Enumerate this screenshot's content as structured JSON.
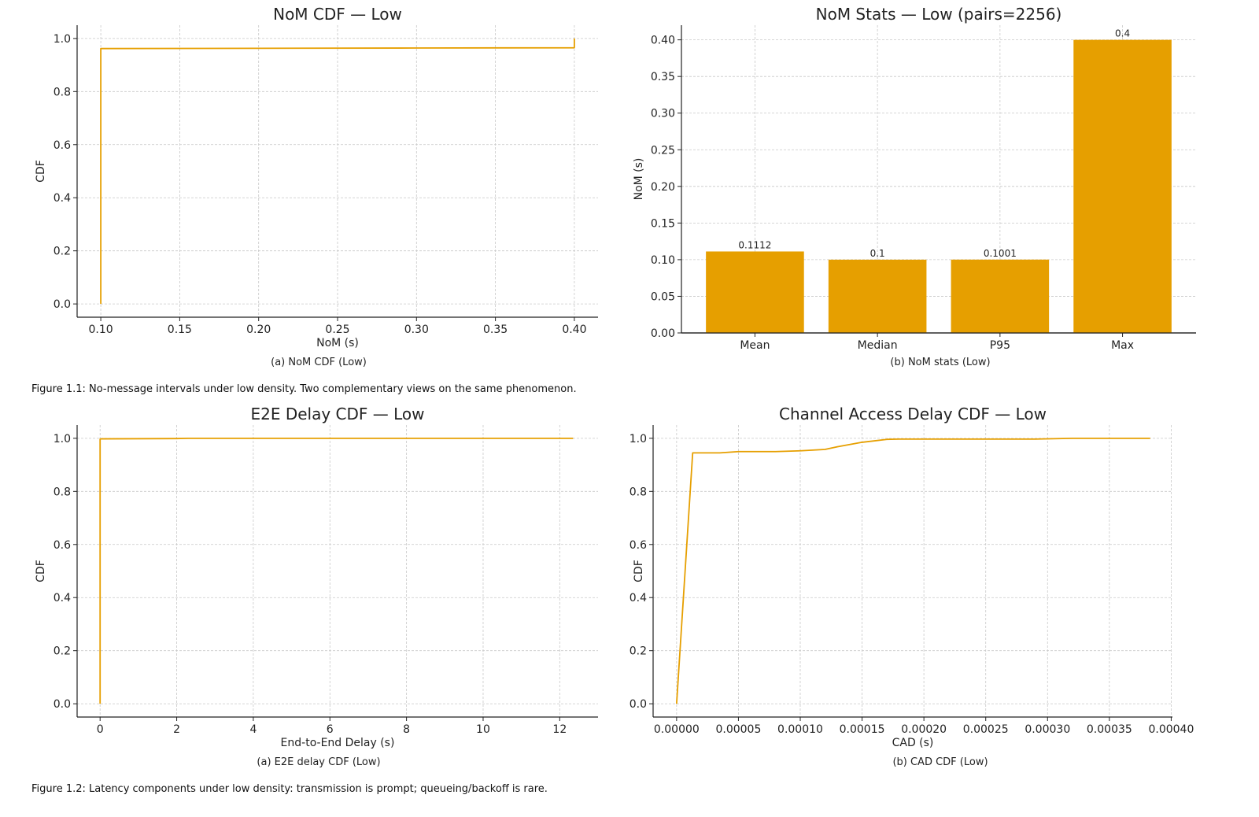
{
  "style": {
    "line_color": "#e69f00",
    "bar_color": "#e69f00",
    "grid_color": "#c8c8c8"
  },
  "figure1": {
    "caption": "Figure 1.1: No-message intervals under low density. Two complementary views on the same phenomenon.",
    "sub_a": "(a) NoM CDF (Low)",
    "sub_b": "(b) NoM stats (Low)"
  },
  "figure2": {
    "caption": "Figure 1.2: Latency components under low density: transmission is prompt; queueing/backoff is rare.",
    "sub_a": "(a) E2E delay CDF (Low)",
    "sub_b": "(b) CAD CDF (Low)"
  },
  "chart_data": [
    {
      "id": "nom_cdf",
      "type": "line",
      "title": "NoM CDF — Low",
      "xlabel": "NoM (s)",
      "ylabel": "CDF",
      "xlim": [
        0.085,
        0.415
      ],
      "ylim": [
        -0.05,
        1.05
      ],
      "xticks": [
        0.1,
        0.15,
        0.2,
        0.25,
        0.3,
        0.35,
        0.4
      ],
      "xtick_labels": [
        "0.10",
        "0.15",
        "0.20",
        "0.25",
        "0.30",
        "0.35",
        "0.40"
      ],
      "yticks": [
        0.0,
        0.2,
        0.4,
        0.6,
        0.8,
        1.0
      ],
      "ytick_labels": [
        "0.0",
        "0.2",
        "0.4",
        "0.6",
        "0.8",
        "1.0"
      ],
      "grid": true,
      "x": [
        0.1,
        0.1,
        0.1,
        0.2,
        0.3,
        0.4,
        0.4,
        0.4
      ],
      "y": [
        0.0,
        0.96,
        0.962,
        0.963,
        0.964,
        0.965,
        0.965,
        1.0
      ]
    },
    {
      "id": "nom_stats",
      "type": "bar",
      "title": "NoM Stats — Low (pairs=2256)",
      "xlabel": "",
      "ylabel": "NoM (s)",
      "categories": [
        "Mean",
        "Median",
        "P95",
        "Max"
      ],
      "values": [
        0.1112,
        0.1,
        0.1001,
        0.4
      ],
      "data_labels": [
        "0.1112",
        "0.1",
        "0.1001",
        "0.4"
      ],
      "ylim": [
        0,
        0.42
      ],
      "yticks": [
        0.0,
        0.05,
        0.1,
        0.15,
        0.2,
        0.25,
        0.3,
        0.35,
        0.4
      ],
      "ytick_labels": [
        "0.00",
        "0.05",
        "0.10",
        "0.15",
        "0.20",
        "0.25",
        "0.30",
        "0.35",
        "0.40"
      ],
      "grid": true
    },
    {
      "id": "e2e_cdf",
      "type": "line",
      "title": "E2E Delay CDF — Low",
      "xlabel": "End-to-End Delay (s)",
      "ylabel": "CDF",
      "xlim": [
        -0.6,
        13.0
      ],
      "ylim": [
        -0.05,
        1.05
      ],
      "xticks": [
        0,
        2,
        4,
        6,
        8,
        10,
        12
      ],
      "xtick_labels": [
        "0",
        "2",
        "4",
        "6",
        "8",
        "10",
        "12"
      ],
      "yticks": [
        0.0,
        0.2,
        0.4,
        0.6,
        0.8,
        1.0
      ],
      "ytick_labels": [
        "0.0",
        "0.2",
        "0.4",
        "0.6",
        "0.8",
        "1.0"
      ],
      "grid": true,
      "x": [
        0.0,
        0.0,
        0.05,
        2.0,
        2.3,
        12.35
      ],
      "y": [
        0.0,
        0.997,
        0.998,
        0.999,
        1.0,
        1.0
      ]
    },
    {
      "id": "cad_cdf",
      "type": "line",
      "title": "Channel Access Delay CDF — Low",
      "xlabel": "CAD (s)",
      "ylabel": "CDF",
      "xlim": [
        -1.9e-05,
        0.000401
      ],
      "ylim": [
        -0.05,
        1.05
      ],
      "xticks": [
        0.0,
        5e-05,
        0.0001,
        0.00015,
        0.0002,
        0.00025,
        0.0003,
        0.00035,
        0.0004
      ],
      "xtick_labels": [
        "0.00000",
        "0.00005",
        "0.00010",
        "0.00015",
        "0.00020",
        "0.00025",
        "0.00030",
        "0.00035",
        "0.00040"
      ],
      "yticks": [
        0.0,
        0.2,
        0.4,
        0.6,
        0.8,
        1.0
      ],
      "ytick_labels": [
        "0.0",
        "0.2",
        "0.4",
        "0.6",
        "0.8",
        "1.0"
      ],
      "grid": true,
      "x": [
        0.0,
        1.3e-05,
        3.5e-05,
        5e-05,
        8e-05,
        0.0001,
        0.00012,
        0.00013,
        0.00015,
        0.00017,
        0.00018,
        0.0002,
        0.00029,
        0.00032,
        0.000383
      ],
      "y": [
        0.0,
        0.945,
        0.945,
        0.95,
        0.95,
        0.953,
        0.958,
        0.968,
        0.985,
        0.996,
        0.997,
        0.997,
        0.997,
        1.0,
        1.0
      ]
    }
  ]
}
